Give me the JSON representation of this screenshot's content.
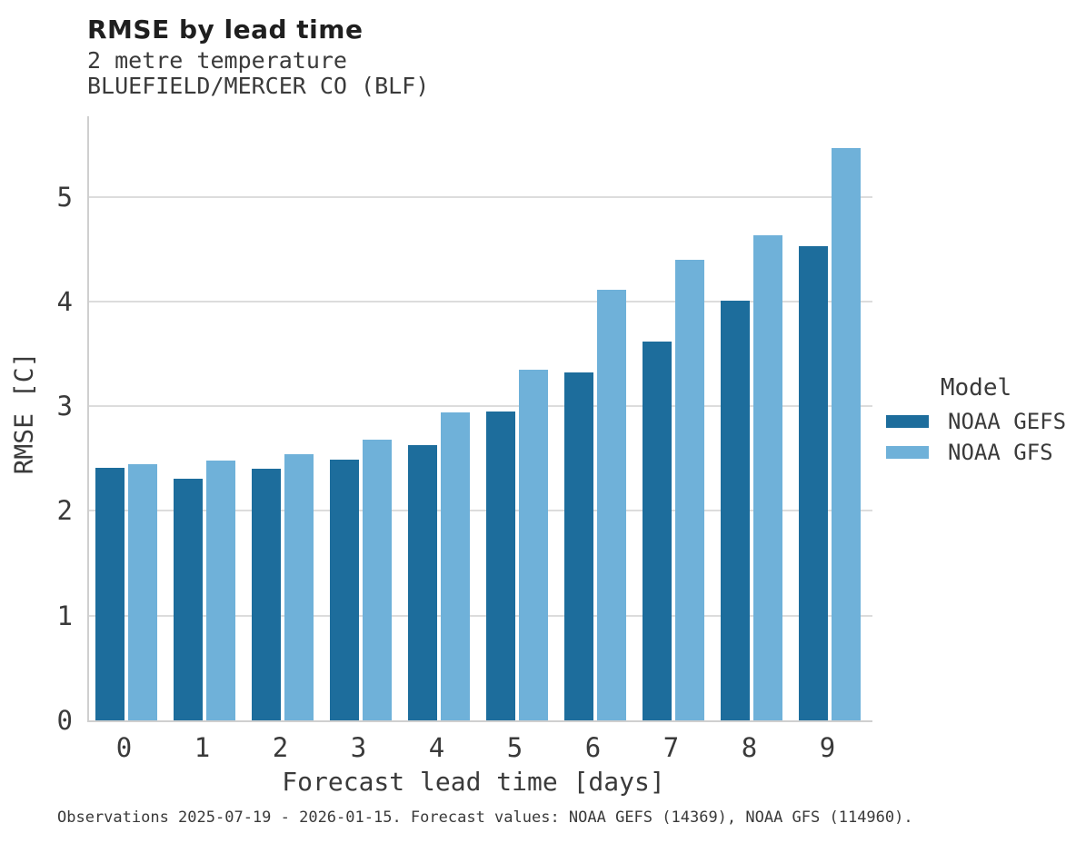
{
  "title": "RMSE by lead time",
  "subtitle_line1": "2 metre temperature",
  "subtitle_line2": "BLUEFIELD/MERCER CO (BLF)",
  "caption": "Observations 2025-07-19 - 2026-01-15. Forecast values: NOAA GEFS (14369), NOAA GFS (114960).",
  "legend": {
    "title": "Model",
    "entries": [
      {
        "label": "NOAA GEFS",
        "color": "#1d6d9c"
      },
      {
        "label": "NOAA GFS",
        "color": "#6fb1d9"
      }
    ]
  },
  "colors": {
    "gefs_bar": "#1d6d9c",
    "gfs_bar": "#6fb1d9",
    "gridline": "#dcdcdc",
    "spine": "#cfcfcf",
    "text": "#3a3a3a",
    "title_text": "#1f1f1f"
  },
  "chart_data": {
    "type": "bar",
    "title": "RMSE by lead time",
    "subtitle": "2 metre temperature, BLUEFIELD/MERCER CO (BLF)",
    "xlabel": "Forecast lead time [days]",
    "ylabel": "RMSE [C]",
    "categories": [
      "0",
      "1",
      "2",
      "3",
      "4",
      "5",
      "6",
      "7",
      "8",
      "9"
    ],
    "yticks": [
      0,
      1,
      2,
      3,
      4,
      5
    ],
    "ylim": [
      0,
      5.77
    ],
    "grid": true,
    "legend_position": "right",
    "series": [
      {
        "name": "NOAA GEFS",
        "color": "#1d6d9c",
        "values": [
          2.41,
          2.31,
          2.4,
          2.49,
          2.63,
          2.95,
          3.32,
          3.62,
          4.01,
          4.53
        ]
      },
      {
        "name": "NOAA GFS",
        "color": "#6fb1d9",
        "values": [
          2.45,
          2.48,
          2.54,
          2.68,
          2.94,
          3.35,
          4.11,
          4.4,
          4.63,
          5.46
        ]
      }
    ]
  }
}
